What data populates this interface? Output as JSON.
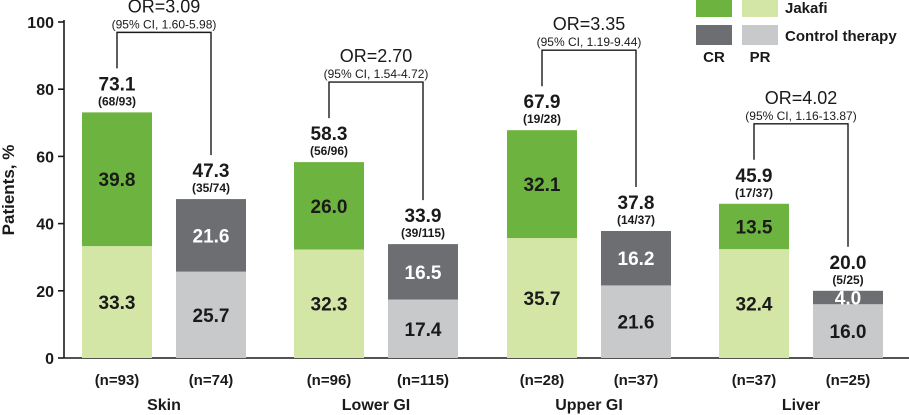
{
  "chart_data": {
    "type": "bar",
    "stacked": true,
    "ylabel": "Patients, %",
    "ylim": [
      0,
      100
    ],
    "yticks": [
      "0",
      "20",
      "40",
      "60",
      "80",
      "100"
    ],
    "legend": {
      "placement": "top-right",
      "rows": [
        "Jakafi",
        "Control therapy"
      ],
      "columns": [
        "CR",
        "PR"
      ],
      "colors": {
        "jakafi_cr": "#6db33f",
        "jakafi_pr": "#d4e6a5",
        "control_cr": "#6d6e71",
        "control_pr": "#c8c9cb"
      }
    },
    "groups": [
      {
        "category": "Skin",
        "or_label": "OR=3.09",
        "ci_label": "(95% CI, 1.60-5.98)",
        "bars": [
          {
            "arm": "Jakafi",
            "n_label": "(n=93)",
            "cr": 39.8,
            "pr": 33.3,
            "cr_label": "39.8",
            "pr_label": "33.3",
            "total": 73.1,
            "total_label": "73.1",
            "fraction": "(68/93)"
          },
          {
            "arm": "Control therapy",
            "n_label": "(n=74)",
            "cr": 21.6,
            "pr": 25.7,
            "cr_label": "21.6",
            "pr_label": "25.7",
            "total": 47.3,
            "total_label": "47.3",
            "fraction": "(35/74)"
          }
        ]
      },
      {
        "category": "Lower GI",
        "or_label": "OR=2.70",
        "ci_label": "(95% CI, 1.54-4.72)",
        "bars": [
          {
            "arm": "Jakafi",
            "n_label": "(n=96)",
            "cr": 26.0,
            "pr": 32.3,
            "cr_label": "26.0",
            "pr_label": "32.3",
            "total": 58.3,
            "total_label": "58.3",
            "fraction": "(56/96)"
          },
          {
            "arm": "Control therapy",
            "n_label": "(n=115)",
            "cr": 16.5,
            "pr": 17.4,
            "cr_label": "16.5",
            "pr_label": "17.4",
            "total": 33.9,
            "total_label": "33.9",
            "fraction": "(39/115)"
          }
        ]
      },
      {
        "category": "Upper GI",
        "or_label": "OR=3.35",
        "ci_label": "(95% CI, 1.19-9.44)",
        "bars": [
          {
            "arm": "Jakafi",
            "n_label": "(n=28)",
            "cr": 32.1,
            "pr": 35.7,
            "cr_label": "32.1",
            "pr_label": "35.7",
            "total": 67.9,
            "total_label": "67.9",
            "fraction": "(19/28)"
          },
          {
            "arm": "Control therapy",
            "n_label": "(n=37)",
            "cr": 16.2,
            "pr": 21.6,
            "cr_label": "16.2",
            "pr_label": "21.6",
            "total": 37.8,
            "total_label": "37.8",
            "fraction": "(14/37)"
          }
        ]
      },
      {
        "category": "Liver",
        "or_label": "OR=4.02",
        "ci_label": "(95% CI, 1.16-13.87)",
        "bars": [
          {
            "arm": "Jakafi",
            "n_label": "(n=37)",
            "cr": 13.5,
            "pr": 32.4,
            "cr_label": "13.5",
            "pr_label": "32.4",
            "total": 45.9,
            "total_label": "45.9",
            "fraction": "(17/37)"
          },
          {
            "arm": "Control therapy",
            "n_label": "(n=25)",
            "cr": 4.0,
            "pr": 16.0,
            "cr_label": "4.0",
            "pr_label": "16.0",
            "total": 20.0,
            "total_label": "20.0",
            "fraction": "(5/25)"
          }
        ]
      }
    ]
  }
}
